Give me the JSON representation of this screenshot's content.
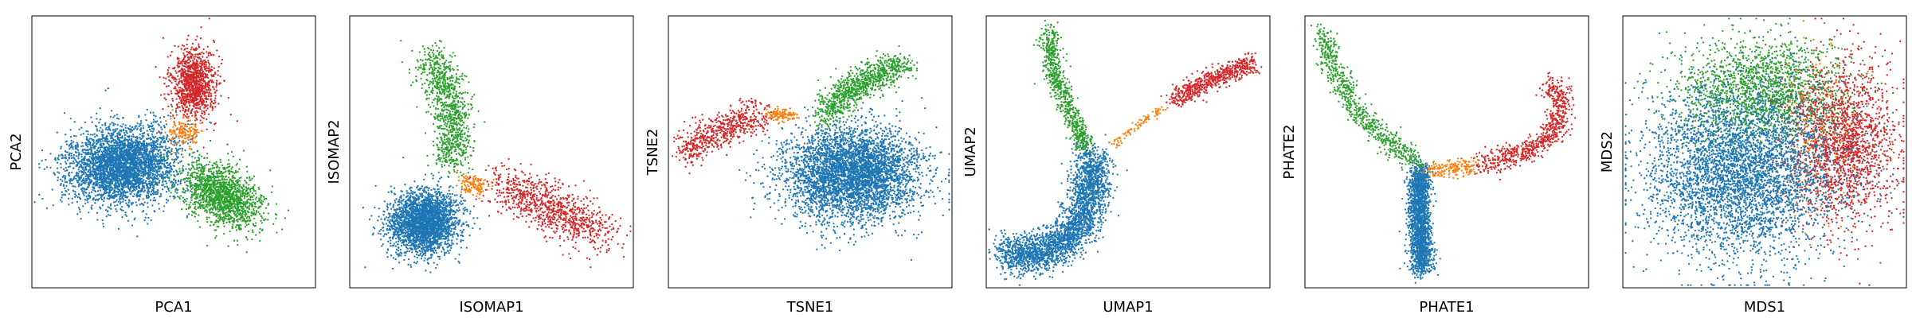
{
  "figure": {
    "colors": {
      "c0": "#1f77b4",
      "c1": "#ff7f0e",
      "c2": "#2ca02c",
      "c3": "#d62728"
    }
  },
  "chart_data": [
    {
      "type": "scatter",
      "xlabel": "PCA1",
      "ylabel": "PCA2",
      "ticks": "none",
      "grid": false,
      "legend": "none",
      "clusters": [
        {
          "color": "#1f77b4",
          "points_hint": 6000,
          "shape": "ellipse",
          "center": [
            0.32,
            0.55
          ],
          "radii": [
            0.19,
            0.14
          ],
          "angle": -5
        },
        {
          "color": "#2ca02c",
          "points_hint": 2500,
          "shape": "ellipse",
          "center": [
            0.67,
            0.66
          ],
          "radii": [
            0.16,
            0.1
          ],
          "angle": 35
        },
        {
          "color": "#d62728",
          "points_hint": 1800,
          "shape": "ellipse",
          "center": [
            0.57,
            0.25
          ],
          "radii": [
            0.08,
            0.13
          ],
          "angle": 0
        },
        {
          "color": "#ff7f0e",
          "points_hint": 250,
          "shape": "ellipse",
          "center": [
            0.53,
            0.43
          ],
          "radii": [
            0.06,
            0.05
          ],
          "angle": 0
        }
      ]
    },
    {
      "type": "scatter",
      "xlabel": "ISOMAP1",
      "ylabel": "ISOMAP2",
      "ticks": "none",
      "grid": false,
      "legend": "none",
      "clusters": [
        {
          "color": "#1f77b4",
          "points_hint": 4500,
          "shape": "ellipse",
          "center": [
            0.26,
            0.76
          ],
          "radii": [
            0.12,
            0.11
          ],
          "angle": -25
        },
        {
          "color": "#2ca02c",
          "points_hint": 1600,
          "shape": "path",
          "path": [
            [
              0.29,
              0.15
            ],
            [
              0.34,
              0.28
            ],
            [
              0.37,
              0.42
            ],
            [
              0.36,
              0.54
            ]
          ],
          "spread": 0.035
        },
        {
          "color": "#d62728",
          "points_hint": 1500,
          "shape": "path",
          "path": [
            [
              0.53,
              0.62
            ],
            [
              0.67,
              0.68
            ],
            [
              0.8,
              0.76
            ],
            [
              0.9,
              0.8
            ]
          ],
          "spread": 0.045
        },
        {
          "color": "#ff7f0e",
          "points_hint": 200,
          "shape": "path",
          "path": [
            [
              0.4,
              0.61
            ],
            [
              0.47,
              0.63
            ]
          ],
          "spread": 0.018
        }
      ]
    },
    {
      "type": "scatter",
      "xlabel": "TSNE1",
      "ylabel": "TSNE2",
      "ticks": "none",
      "grid": false,
      "legend": "none",
      "clusters": [
        {
          "color": "#1f77b4",
          "points_hint": 7000,
          "shape": "ellipse",
          "center": [
            0.65,
            0.58
          ],
          "radii": [
            0.24,
            0.17
          ],
          "angle": 0
        },
        {
          "color": "#2ca02c",
          "points_hint": 1500,
          "shape": "path",
          "path": [
            [
              0.55,
              0.37
            ],
            [
              0.64,
              0.27
            ],
            [
              0.74,
              0.21
            ],
            [
              0.83,
              0.19
            ]
          ],
          "spread": 0.03
        },
        {
          "color": "#d62728",
          "points_hint": 1000,
          "shape": "path",
          "path": [
            [
              0.06,
              0.5
            ],
            [
              0.14,
              0.44
            ],
            [
              0.24,
              0.4
            ],
            [
              0.33,
              0.36
            ]
          ],
          "spread": 0.03
        },
        {
          "color": "#ff7f0e",
          "points_hint": 200,
          "shape": "path",
          "path": [
            [
              0.36,
              0.36
            ],
            [
              0.44,
              0.37
            ]
          ],
          "spread": 0.012
        }
      ]
    },
    {
      "type": "scatter",
      "xlabel": "UMAP1",
      "ylabel": "UMAP2",
      "ticks": "none",
      "grid": false,
      "legend": "none",
      "clusters": [
        {
          "color": "#1f77b4",
          "points_hint": 4500,
          "shape": "path",
          "path": [
            [
              0.07,
              0.86
            ],
            [
              0.14,
              0.89
            ],
            [
              0.24,
              0.85
            ],
            [
              0.33,
              0.78
            ],
            [
              0.37,
              0.64
            ],
            [
              0.37,
              0.51
            ]
          ],
          "spread": 0.035
        },
        {
          "color": "#2ca02c",
          "points_hint": 1200,
          "shape": "path",
          "path": [
            [
              0.22,
              0.05
            ],
            [
              0.24,
              0.22
            ],
            [
              0.3,
              0.36
            ],
            [
              0.35,
              0.48
            ]
          ],
          "spread": 0.018
        },
        {
          "color": "#d62728",
          "points_hint": 1000,
          "shape": "path",
          "path": [
            [
              0.66,
              0.31
            ],
            [
              0.78,
              0.24
            ],
            [
              0.94,
              0.17
            ]
          ],
          "spread": 0.018
        },
        {
          "color": "#ff7f0e",
          "points_hint": 150,
          "shape": "path",
          "path": [
            [
              0.43,
              0.48
            ],
            [
              0.55,
              0.39
            ],
            [
              0.63,
              0.33
            ]
          ],
          "spread": 0.008
        }
      ]
    },
    {
      "type": "scatter",
      "xlabel": "PHATE1",
      "ylabel": "PHATE2",
      "ticks": "none",
      "grid": false,
      "legend": "none",
      "clusters": [
        {
          "color": "#1f77b4",
          "points_hint": 3000,
          "shape": "path",
          "path": [
            [
              0.41,
              0.56
            ],
            [
              0.4,
              0.7
            ],
            [
              0.41,
              0.82
            ],
            [
              0.41,
              0.93
            ]
          ],
          "spread": 0.02
        },
        {
          "color": "#2ca02c",
          "points_hint": 1200,
          "shape": "path",
          "path": [
            [
              0.06,
              0.05
            ],
            [
              0.1,
              0.2
            ],
            [
              0.2,
              0.37
            ],
            [
              0.32,
              0.48
            ],
            [
              0.4,
              0.54
            ]
          ],
          "spread": 0.02
        },
        {
          "color": "#d62728",
          "points_hint": 1200,
          "shape": "path",
          "path": [
            [
              0.61,
              0.55
            ],
            [
              0.78,
              0.5
            ],
            [
              0.88,
              0.43
            ],
            [
              0.91,
              0.3
            ],
            [
              0.86,
              0.25
            ]
          ],
          "spread": 0.02
        },
        {
          "color": "#ff7f0e",
          "points_hint": 300,
          "shape": "path",
          "path": [
            [
              0.44,
              0.57
            ],
            [
              0.53,
              0.56
            ],
            [
              0.6,
              0.55
            ]
          ],
          "spread": 0.015
        }
      ]
    },
    {
      "type": "scatter",
      "xlabel": "MDS1",
      "ylabel": "MDS2",
      "ticks": "none",
      "grid": false,
      "legend": "none",
      "clusters": [
        {
          "color": "#2ca02c",
          "points_hint": 3000,
          "shape": "ellipse",
          "center": [
            0.5,
            0.28
          ],
          "radii": [
            0.3,
            0.2
          ],
          "angle": 0
        },
        {
          "color": "#d62728",
          "points_hint": 3000,
          "shape": "ellipse",
          "center": [
            0.78,
            0.47
          ],
          "radii": [
            0.19,
            0.29
          ],
          "angle": 0
        },
        {
          "color": "#ff7f0e",
          "points_hint": 300,
          "shape": "ellipse",
          "center": [
            0.67,
            0.45
          ],
          "radii": [
            0.13,
            0.32
          ],
          "angle": 0
        },
        {
          "color": "#1f77b4",
          "points_hint": 7000,
          "shape": "ellipse",
          "center": [
            0.42,
            0.58
          ],
          "radii": [
            0.34,
            0.32
          ],
          "angle": 0
        }
      ]
    }
  ]
}
